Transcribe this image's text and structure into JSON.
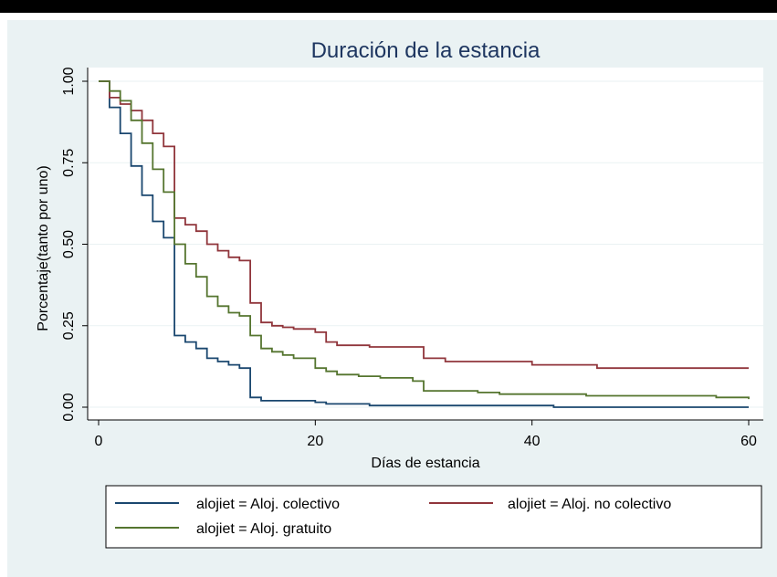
{
  "chart_data": {
    "type": "line",
    "step": true,
    "title": "Duración de la estancia",
    "xlabel": "Días de estancia",
    "ylabel": "Porcentaje(tanto por uno)",
    "xlim": [
      0,
      60
    ],
    "ylim": [
      0,
      1
    ],
    "xticks": [
      0,
      20,
      40,
      60
    ],
    "xtick_labels": [
      "0",
      "20",
      "40",
      "60"
    ],
    "yticks": [
      0,
      0.25,
      0.5,
      0.75,
      1
    ],
    "ytick_labels": [
      "0.00",
      "0.25",
      "0.50",
      "0.75",
      "1.00"
    ],
    "grid": true,
    "legend_position": "bottom",
    "series": [
      {
        "name": "alojiet = Aloj. colectivo",
        "color": "#1a476f",
        "x": [
          0,
          1,
          2,
          3,
          4,
          5,
          6,
          7,
          8,
          9,
          10,
          11,
          12,
          13,
          14,
          15,
          20,
          21,
          25,
          42,
          60
        ],
        "y": [
          1.0,
          0.92,
          0.84,
          0.74,
          0.65,
          0.57,
          0.52,
          0.22,
          0.2,
          0.18,
          0.15,
          0.14,
          0.13,
          0.12,
          0.03,
          0.02,
          0.015,
          0.01,
          0.005,
          0.0,
          0.0
        ]
      },
      {
        "name": "alojiet = Aloj. no colectivo",
        "color": "#90353b",
        "x": [
          0,
          1,
          2,
          3,
          4,
          5,
          6,
          7,
          8,
          9,
          10,
          11,
          12,
          13,
          14,
          15,
          16,
          17,
          18,
          20,
          21,
          22,
          25,
          30,
          32,
          40,
          46,
          60
        ],
        "y": [
          1.0,
          0.95,
          0.93,
          0.91,
          0.88,
          0.84,
          0.8,
          0.58,
          0.56,
          0.54,
          0.5,
          0.48,
          0.46,
          0.45,
          0.32,
          0.26,
          0.25,
          0.245,
          0.24,
          0.23,
          0.2,
          0.19,
          0.185,
          0.15,
          0.14,
          0.13,
          0.12,
          0.12
        ]
      },
      {
        "name": "alojiet = Aloj. gratuito",
        "color": "#55752f",
        "x": [
          0,
          1,
          2,
          3,
          4,
          5,
          6,
          7,
          8,
          9,
          10,
          11,
          12,
          13,
          14,
          15,
          16,
          17,
          18,
          20,
          21,
          22,
          24,
          26,
          29,
          30,
          35,
          37,
          45,
          57,
          60
        ],
        "y": [
          1.0,
          0.97,
          0.94,
          0.88,
          0.81,
          0.73,
          0.66,
          0.5,
          0.44,
          0.4,
          0.34,
          0.31,
          0.29,
          0.28,
          0.22,
          0.18,
          0.17,
          0.16,
          0.15,
          0.12,
          0.11,
          0.1,
          0.095,
          0.09,
          0.08,
          0.05,
          0.045,
          0.04,
          0.035,
          0.03,
          0.025
        ]
      }
    ]
  }
}
